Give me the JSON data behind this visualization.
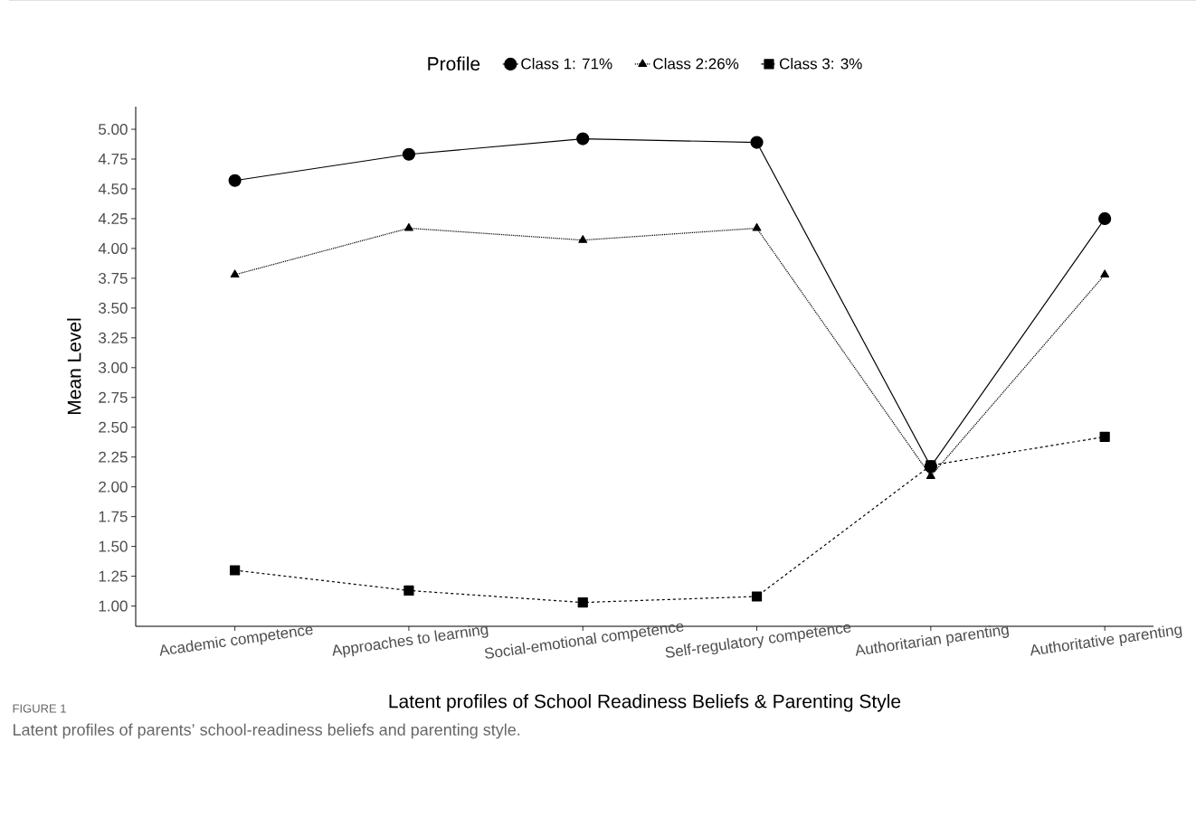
{
  "chart_data": {
    "type": "line",
    "xlabel": "Latent profiles of School Readiness Beliefs & Parenting Style",
    "ylabel": "Mean Level",
    "legend_title": "Profile",
    "legend": "top",
    "categories": [
      "Academic competence",
      "Approaches to learning",
      "Social-emotional competence",
      "Self-regulatory competence",
      "Authoritarian parenting",
      "Authoritative parenting"
    ],
    "ylim": [
      0.83,
      5.19
    ],
    "yticks": [
      {
        "value": 1.0,
        "label": "1.00"
      },
      1.25,
      {
        "value": 1.5,
        "label": "1.50"
      },
      1.75,
      {
        "value": 2.0,
        "label": "2.00"
      },
      2.25,
      {
        "value": 2.5,
        "label": "2.50"
      },
      2.75,
      {
        "value": 3.0,
        "label": "3.00"
      },
      3.25,
      {
        "value": 3.5,
        "label": "3.50"
      },
      3.75,
      {
        "value": 4.0,
        "label": "4.00"
      },
      4.25,
      {
        "value": 4.5,
        "label": "4.50"
      },
      4.75,
      {
        "value": 5.0,
        "label": "5.00"
      }
    ],
    "series": [
      {
        "name": "Class 1: 71%",
        "color": "#000000",
        "marker": "circle",
        "line_style": "solid",
        "values": [
          4.57,
          4.79,
          4.92,
          4.89,
          2.17,
          4.25
        ]
      },
      {
        "name": "Class 2:26%",
        "color": "#000000",
        "marker": "triangle",
        "line_style": "dotted",
        "values": [
          3.78,
          4.17,
          4.07,
          4.17,
          2.09,
          3.78
        ]
      },
      {
        "name": "Class 3: 3%",
        "color": "#000000",
        "marker": "square",
        "line_style": "dashed",
        "values": [
          1.3,
          1.13,
          1.03,
          1.08,
          2.18,
          2.42
        ]
      }
    ],
    "annotations": [
      "FIGURE 1",
      "Latent profiles of parents’ school-readiness beliefs and parenting style."
    ]
  }
}
